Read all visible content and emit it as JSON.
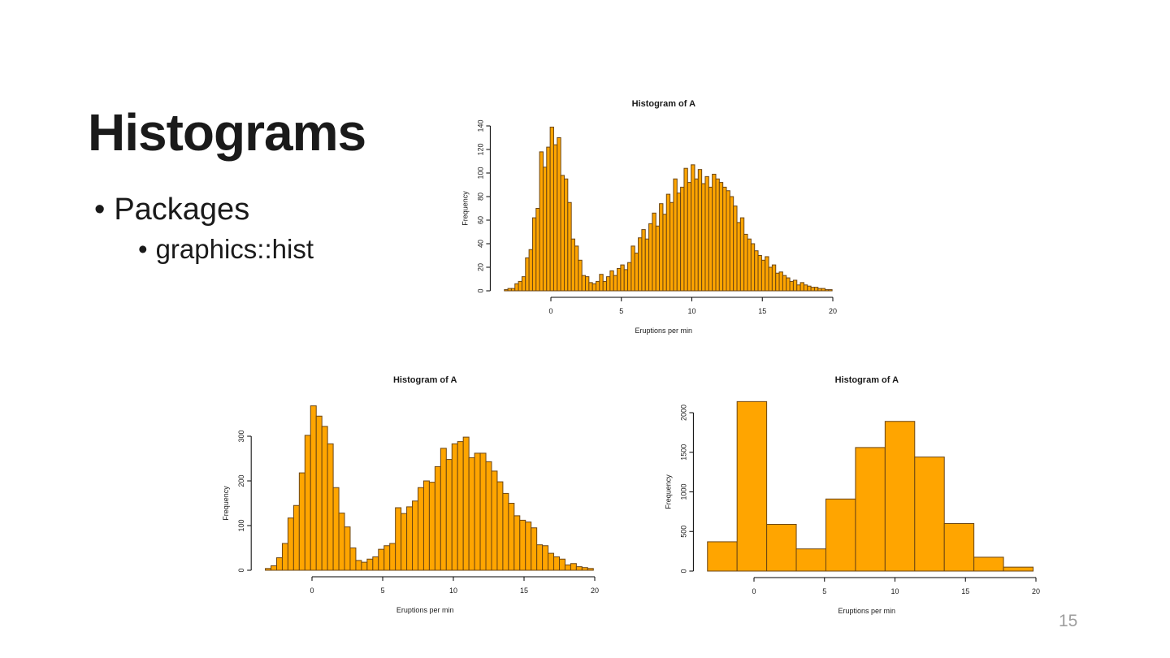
{
  "slide": {
    "title": "Histograms",
    "bullets": [
      {
        "marker": "•",
        "text": "Packages"
      },
      {
        "marker": "•",
        "text": "graphics::hist"
      }
    ],
    "page_number": "15"
  },
  "colors": {
    "bar_fill": "#FFA500",
    "bar_stroke": "#6B4513",
    "axis": "#000000",
    "text": "#1A1A1A",
    "page_number": "#9E9E9E"
  },
  "chart_data": [
    {
      "type": "bar",
      "title": "Histogram of A",
      "xlabel": "Eruptions per min",
      "ylabel": "Frequency",
      "x_start": -3.3,
      "bin_width": 0.25,
      "xlim": [
        -4.3,
        20.3
      ],
      "ylim": [
        0,
        140
      ],
      "xticks": [
        0,
        5,
        10,
        15,
        20
      ],
      "yticks": [
        0,
        20,
        40,
        60,
        80,
        100,
        120,
        140
      ],
      "grid": false,
      "legend": "none",
      "values": [
        1,
        2,
        2,
        6,
        8,
        12,
        28,
        35,
        62,
        70,
        118,
        105,
        122,
        139,
        124,
        130,
        98,
        95,
        75,
        44,
        38,
        26,
        13,
        12,
        7,
        6,
        8,
        14,
        8,
        12,
        17,
        13,
        19,
        22,
        18,
        24,
        38,
        32,
        45,
        52,
        44,
        57,
        66,
        55,
        74,
        65,
        82,
        75,
        95,
        83,
        88,
        104,
        92,
        107,
        95,
        103,
        91,
        97,
        88,
        99,
        95,
        92,
        88,
        85,
        80,
        72,
        58,
        62,
        48,
        44,
        40,
        34,
        30,
        26,
        29,
        20,
        22,
        15,
        16,
        13,
        11,
        8,
        9,
        5,
        7,
        5,
        4,
        3,
        3,
        2,
        2,
        1,
        1
      ]
    },
    {
      "type": "bar",
      "title": "Histogram of A",
      "xlabel": "Eruptions per min",
      "ylabel": "Frequency",
      "x_start": -3.3,
      "bin_width": 0.4,
      "xlim": [
        -4.3,
        20.3
      ],
      "ylim": [
        0,
        370
      ],
      "xticks": [
        0,
        5,
        10,
        15,
        20
      ],
      "yticks": [
        0,
        100,
        200,
        300
      ],
      "grid": false,
      "legend": "none",
      "values": [
        4,
        10,
        28,
        60,
        117,
        145,
        218,
        302,
        368,
        345,
        322,
        283,
        185,
        128,
        97,
        50,
        22,
        18,
        25,
        30,
        47,
        55,
        60,
        140,
        127,
        142,
        155,
        185,
        200,
        197,
        232,
        273,
        248,
        283,
        288,
        298,
        252,
        262,
        262,
        243,
        222,
        198,
        172,
        150,
        122,
        112,
        108,
        95,
        57,
        55,
        38,
        30,
        25,
        12,
        15,
        8,
        6,
        4
      ]
    },
    {
      "type": "bar",
      "title": "Histogram of A",
      "xlabel": "Eruptions per min",
      "ylabel": "Frequency",
      "x_start": -3.3,
      "bin_width": 2.1,
      "xlim": [
        -4.3,
        20.3
      ],
      "ylim": [
        0,
        2150
      ],
      "xticks": [
        0,
        5,
        10,
        15,
        20
      ],
      "yticks": [
        0,
        500,
        1000,
        1500,
        2000
      ],
      "grid": false,
      "legend": "none",
      "values": [
        370,
        2140,
        590,
        280,
        910,
        1560,
        1890,
        1440,
        600,
        175,
        50
      ]
    }
  ]
}
